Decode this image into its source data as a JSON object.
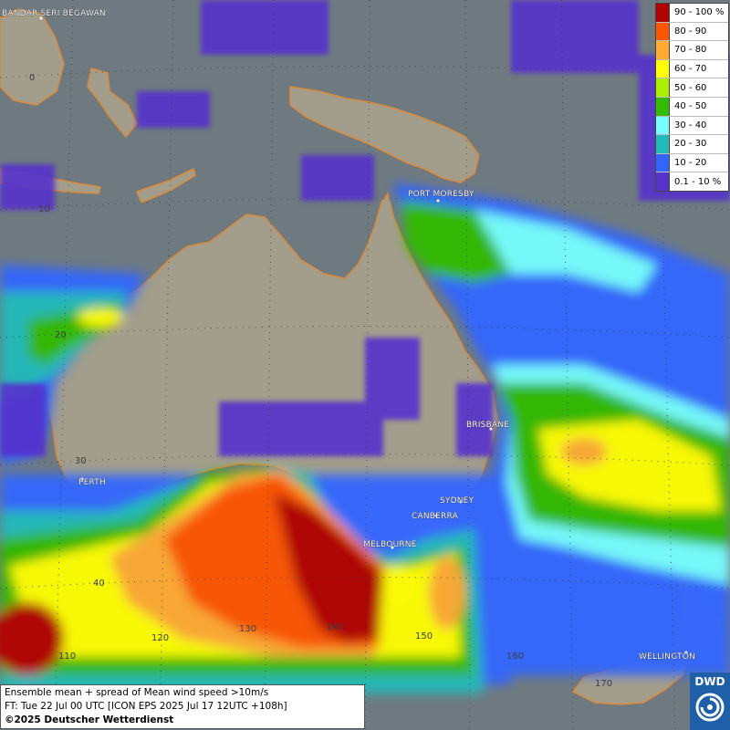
{
  "map": {
    "cities": [
      {
        "name": "BANDAR SERI BEGAWAN"
      },
      {
        "name": "PORT MORESBY"
      },
      {
        "name": "BRISBANE"
      },
      {
        "name": "PERTH"
      },
      {
        "name": "SYDNEY"
      },
      {
        "name": "CANBERRA"
      },
      {
        "name": "MELBOURNE"
      },
      {
        "name": "WELLINGTON"
      }
    ],
    "grid_labels": [
      "0",
      "10",
      "20",
      "30",
      "40",
      "110",
      "120",
      "130",
      "140",
      "150",
      "160",
      "170"
    ]
  },
  "legend": {
    "items": [
      {
        "label": "90 - 100 %",
        "color": "#b30000"
      },
      {
        "label": "80 - 90",
        "color": "#ff5500"
      },
      {
        "label": "70 - 80",
        "color": "#ffaa33"
      },
      {
        "label": "60 - 70",
        "color": "#ffff00"
      },
      {
        "label": "50 - 60",
        "color": "#aaee00"
      },
      {
        "label": "40 - 50",
        "color": "#33bb00"
      },
      {
        "label": "30 - 40",
        "color": "#77ffff"
      },
      {
        "label": "20 - 30",
        "color": "#22bbbb"
      },
      {
        "label": "10 - 20",
        "color": "#3366ff"
      },
      {
        "label": "0.1 - 10 %",
        "color": "#5533cc"
      }
    ]
  },
  "info": {
    "line1": "Ensemble mean + spread of Mean wind speed >10m/s",
    "line2": "FT: Tue 22 Jul 00 UTC [ICON EPS 2025 Jul 17 12UTC +108h]",
    "line3": "©2025 Deutscher Wetterdienst"
  },
  "logo": {
    "text": "DWD"
  },
  "colors": {
    "ocean": "#6f7a80",
    "land": "#a39e8c",
    "coast": "#d98a3a"
  }
}
